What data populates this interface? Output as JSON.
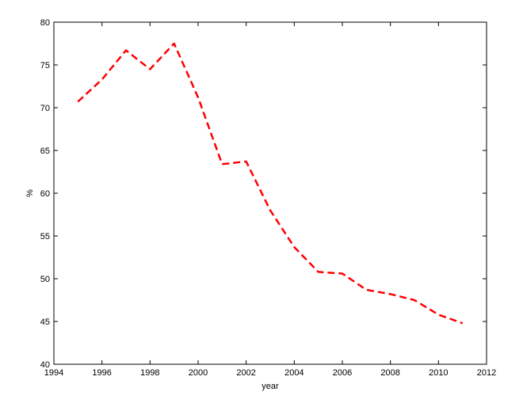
{
  "chart_data": {
    "type": "line",
    "title": "",
    "xlabel": "year",
    "ylabel": "%",
    "xlim": [
      1994,
      2012
    ],
    "ylim": [
      40,
      80
    ],
    "xticks": [
      1994,
      1996,
      1998,
      2000,
      2002,
      2004,
      2006,
      2008,
      2010,
      2012
    ],
    "yticks": [
      40,
      45,
      50,
      55,
      60,
      65,
      70,
      75,
      80
    ],
    "grid": false,
    "legend": "none",
    "series": [
      {
        "color": "#ff0000",
        "line_style": "dashed",
        "x": [
          1995,
          1996,
          1997,
          1998,
          1999,
          2000,
          2001,
          2002,
          2003,
          2004,
          2005,
          2006,
          2007,
          2008,
          2009,
          2010,
          2011
        ],
        "y": [
          70.7,
          73.3,
          76.7,
          74.5,
          77.5,
          71.2,
          63.4,
          63.7,
          58.0,
          53.7,
          50.8,
          50.6,
          48.7,
          48.2,
          47.5,
          45.8,
          44.8
        ]
      }
    ]
  }
}
